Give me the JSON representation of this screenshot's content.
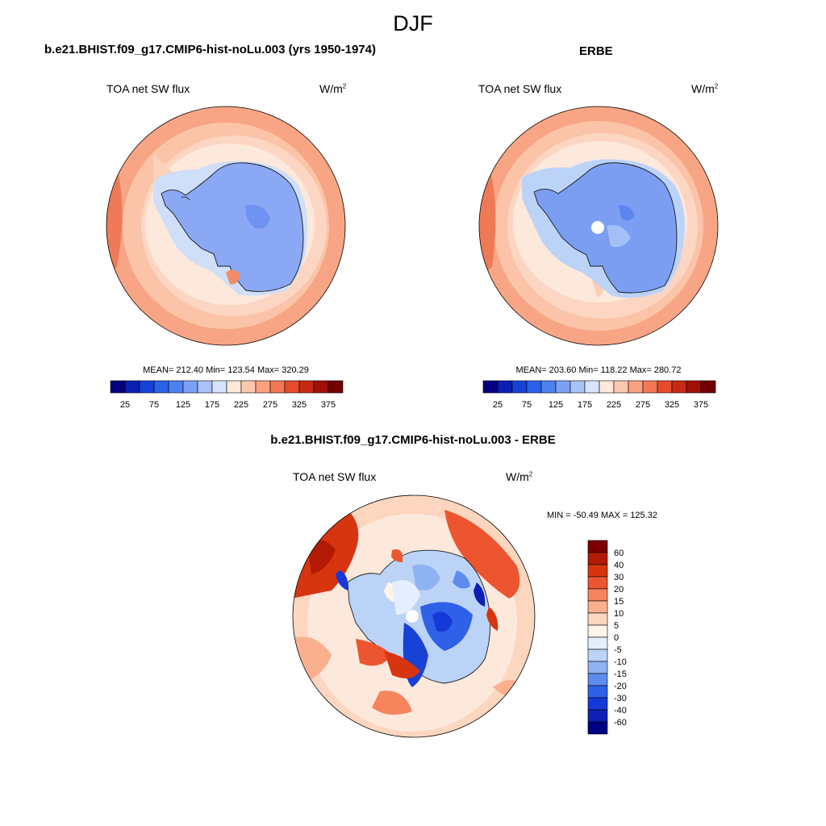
{
  "header": {
    "title": "DJF"
  },
  "panels": [
    {
      "title": "b.e21.BHIST.f09_g17.CMIP6-hist-noLu.003 (yrs 1950-1974)",
      "variable": "TOA net SW flux",
      "units": "W/m",
      "units_exp": "2",
      "stats": "MEAN= 212.40  Min= 123.54  Max= 320.29"
    },
    {
      "title": "ERBE",
      "variable": "TOA net SW flux",
      "units": "W/m",
      "units_exp": "2",
      "stats": "MEAN= 203.60  Min= 118.22  Max= 280.72"
    },
    {
      "title": "b.e21.BHIST.f09_g17.CMIP6-hist-noLu.003 - ERBE",
      "variable": "TOA net SW flux",
      "units": "W/m",
      "units_exp": "2",
      "stats": "MIN = -50.49 MAX = 125.32"
    }
  ],
  "colorbar_abs": {
    "colors": [
      "#02007e",
      "#0a1fb3",
      "#1742d6",
      "#2a62eb",
      "#4f80f0",
      "#7ba1f5",
      "#a9c3f7",
      "#d6e4fa",
      "#fde8dc",
      "#fcc8ad",
      "#f9a180",
      "#f37858",
      "#e64b2d",
      "#c72a12",
      "#a01006",
      "#730000"
    ],
    "tick_labels": [
      "25",
      "75",
      "125",
      "175",
      "225",
      "275",
      "325",
      "375"
    ]
  },
  "colorbar_diff": {
    "colors": [
      "#7d0000",
      "#b21a04",
      "#d7350f",
      "#ec5530",
      "#f6855e",
      "#fab08f",
      "#fdd6c0",
      "#fff3ea",
      "#e4eefc",
      "#bcd3f8",
      "#8fb2f3",
      "#5e8bee",
      "#2f60e8",
      "#1538d8",
      "#0d1fb4",
      "#020083"
    ],
    "tick_labels": [
      "60",
      "40",
      "30",
      "20",
      "15",
      "10",
      "5",
      "0",
      "-5",
      "-10",
      "-15",
      "-20",
      "-30",
      "-40",
      "-60"
    ]
  }
}
